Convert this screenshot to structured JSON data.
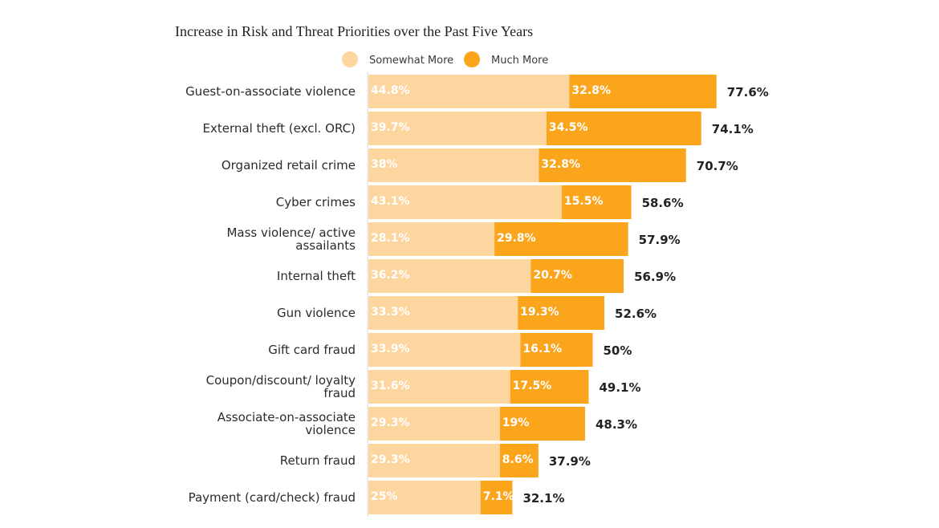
{
  "chart_data": {
    "type": "bar",
    "orientation": "horizontal",
    "stacked": true,
    "title": "Increase in Risk and Threat Priorities over the Past Five Years",
    "xlabel": "",
    "ylabel": "",
    "xlim": [
      0,
      100
    ],
    "grid": false,
    "legend_position": "top-center",
    "categories": [
      "Guest-on-associate violence",
      "External theft (excl. ORC)",
      "Organized retail crime",
      "Cyber crimes",
      "Mass violence/ active assailants",
      "Internal theft",
      "Gun violence",
      "Gift card fraud",
      "Coupon/discount/ loyalty fraud",
      "Associate-on-associate violence",
      "Return fraud",
      "Payment (card/check) fraud"
    ],
    "category_lines": [
      [
        "Guest-on-associate violence"
      ],
      [
        "External theft (excl. ORC)"
      ],
      [
        "Organized retail crime"
      ],
      [
        "Cyber crimes"
      ],
      [
        "Mass violence/ active",
        "assailants"
      ],
      [
        "Internal theft"
      ],
      [
        "Gun violence"
      ],
      [
        "Gift card fraud"
      ],
      [
        "Coupon/discount/ loyalty",
        "fraud"
      ],
      [
        "Associate-on-associate",
        "violence"
      ],
      [
        "Return fraud"
      ],
      [
        "Payment (card/check) fraud"
      ]
    ],
    "series": [
      {
        "name": "Somewhat More",
        "color": "#FDD59E",
        "values": [
          44.8,
          39.7,
          38,
          43.1,
          28.1,
          36.2,
          33.3,
          33.9,
          31.6,
          29.3,
          29.3,
          25
        ],
        "labels": [
          "44.8%",
          "39.7%",
          "38%",
          "43.1%",
          "28.1%",
          "36.2%",
          "33.3%",
          "33.9%",
          "31.6%",
          "29.3%",
          "29.3%",
          "25%"
        ]
      },
      {
        "name": "Much More",
        "color": "#FBA51C",
        "values": [
          32.8,
          34.5,
          32.8,
          15.5,
          29.8,
          20.7,
          19.3,
          16.1,
          17.5,
          19,
          8.6,
          7.1
        ],
        "labels": [
          "32.8%",
          "34.5%",
          "32.8%",
          "15.5%",
          "29.8%",
          "20.7%",
          "19.3%",
          "16.1%",
          "17.5%",
          "19%",
          "8.6%",
          "7.1%"
        ]
      }
    ],
    "totals": [
      77.6,
      74.1,
      70.7,
      58.6,
      57.9,
      56.9,
      52.6,
      50,
      49.1,
      48.3,
      37.9,
      32.1
    ],
    "total_labels": [
      "77.6%",
      "74.1%",
      "70.7%",
      "58.6%",
      "57.9%",
      "56.9%",
      "52.6%",
      "50%",
      "49.1%",
      "48.3%",
      "37.9%",
      "32.1%"
    ]
  }
}
